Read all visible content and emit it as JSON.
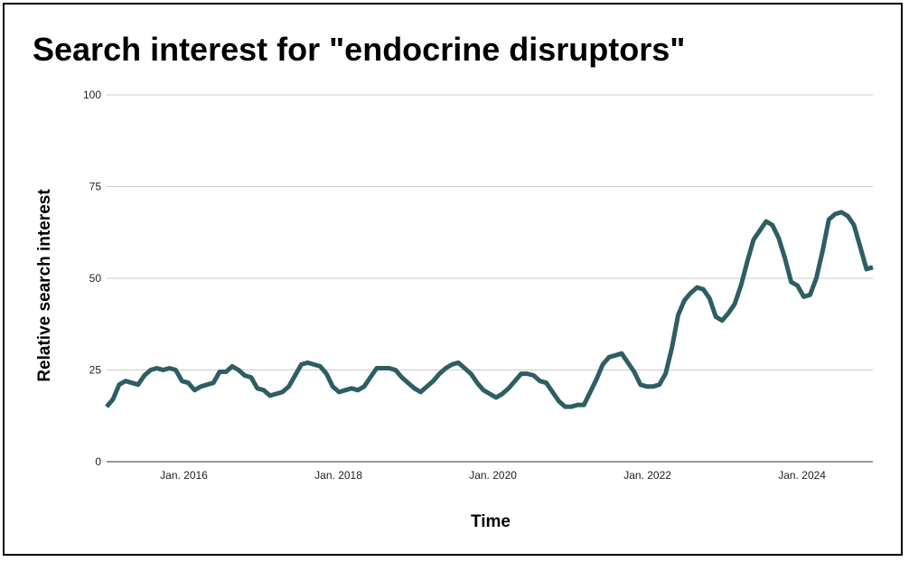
{
  "chart_data": {
    "type": "line",
    "title": "Search interest for \"endocrine disruptors\"",
    "xlabel": "Time",
    "ylabel": "Relative search interest",
    "ylim": [
      0,
      100
    ],
    "y_ticks": [
      "0",
      "25",
      "50",
      "75",
      "100"
    ],
    "x_ticks": [
      "Jan. 2016",
      "Jan. 2018",
      "Jan. 2020",
      "Jan. 2022",
      "Jan. 2024"
    ],
    "x_range": [
      "2015-01",
      "2024-12"
    ],
    "grid": true,
    "line_color": "#2e5e63",
    "series": [
      {
        "values": [
          15,
          17,
          21,
          22,
          21.5,
          21,
          23.5,
          25,
          25.5,
          25,
          25.5,
          25,
          22,
          21.5,
          19.5,
          20.5,
          21,
          21.5,
          24.5,
          24.5,
          26,
          25,
          23.5,
          23,
          20,
          19.5,
          18,
          18.5,
          19,
          20.5,
          23.5,
          26.5,
          27,
          26.5,
          26,
          24,
          20.5,
          19,
          19.5,
          20,
          19.5,
          20.5,
          23,
          25.5,
          25.5,
          25.5,
          25,
          23,
          21.5,
          20,
          19,
          20.5,
          22,
          24,
          25.5,
          26.5,
          27,
          25.5,
          24,
          21.5,
          19.5,
          18.5,
          17.5,
          18.5,
          20,
          22,
          24,
          24,
          23.5,
          22,
          21.5,
          19,
          16.5,
          15,
          15,
          15.5,
          15.5,
          19,
          22.5,
          26.5,
          28.5,
          29,
          29.5,
          27,
          24.5,
          21,
          20.5,
          20.5,
          21,
          24,
          31,
          40,
          44,
          46,
          47.5,
          47,
          44.5,
          39.5,
          38.5,
          40.5,
          43,
          48,
          54.5,
          60.5,
          63,
          65.5,
          64.5,
          61,
          55.5,
          49,
          48,
          45,
          45.5,
          50,
          57.5,
          66,
          67.5,
          68,
          67,
          64.5,
          58.5,
          52.5,
          53
        ]
      }
    ]
  }
}
